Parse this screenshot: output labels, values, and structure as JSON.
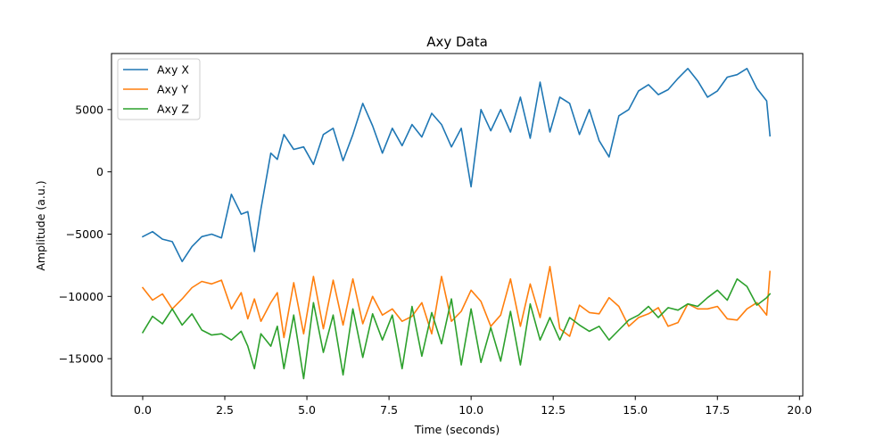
{
  "chart_data": {
    "type": "line",
    "title": "Axy Data",
    "xlabel": "Time (seconds)",
    "ylabel": "Amplitude (a.u.)",
    "xlim": [
      -0.95,
      20.1
    ],
    "ylim": [
      -18000,
      9500
    ],
    "xticks": [
      0,
      2.5,
      5,
      7.5,
      10,
      12.5,
      15,
      17.5,
      20
    ],
    "xtick_labels": [
      "0.0",
      "2.5",
      "5.0",
      "7.5",
      "10.0",
      "12.5",
      "15.0",
      "17.5",
      "20.0"
    ],
    "yticks": [
      -15000,
      -10000,
      -5000,
      0,
      5000
    ],
    "ytick_labels": [
      "−15000",
      "−10000",
      "−5000",
      "0",
      "5000"
    ],
    "grid": false,
    "legend_position": "upper-left",
    "series": [
      {
        "name": "Axy X",
        "color": "#1f77b4",
        "x": [
          0,
          0.3,
          0.6,
          0.9,
          1.2,
          1.5,
          1.8,
          2.1,
          2.4,
          2.7,
          3.0,
          3.2,
          3.4,
          3.6,
          3.9,
          4.1,
          4.3,
          4.6,
          4.9,
          5.2,
          5.5,
          5.8,
          6.1,
          6.4,
          6.7,
          7.0,
          7.3,
          7.6,
          7.9,
          8.2,
          8.5,
          8.8,
          9.1,
          9.4,
          9.7,
          10.0,
          10.3,
          10.6,
          10.9,
          11.2,
          11.5,
          11.8,
          12.1,
          12.4,
          12.7,
          13.0,
          13.3,
          13.6,
          13.9,
          14.2,
          14.5,
          14.8,
          15.1,
          15.4,
          15.7,
          16.0,
          16.3,
          16.6,
          16.9,
          17.2,
          17.5,
          17.8,
          18.1,
          18.4,
          18.7,
          19.0,
          19.1
        ],
        "y": [
          -5200,
          -4800,
          -5400,
          -5600,
          -7200,
          -6000,
          -5200,
          -5000,
          -5300,
          -1800,
          -3400,
          -3200,
          -6400,
          -3000,
          1500,
          1000,
          3000,
          1800,
          2000,
          600,
          3000,
          3500,
          900,
          3000,
          5500,
          3700,
          1500,
          3500,
          2100,
          3800,
          2800,
          4700,
          3800,
          2000,
          3500,
          -1200,
          5000,
          3300,
          5000,
          3200,
          6000,
          2700,
          7200,
          3200,
          6000,
          5500,
          3000,
          5000,
          2500,
          1200,
          4500,
          5000,
          6500,
          7000,
          6200,
          6600,
          7500,
          8300,
          7300,
          6000,
          6500,
          7600,
          7800,
          8300,
          6700,
          5700,
          2900
        ]
      },
      {
        "name": "Axy Y",
        "color": "#ff7f0e",
        "x": [
          0,
          0.3,
          0.6,
          0.9,
          1.2,
          1.5,
          1.8,
          2.1,
          2.4,
          2.7,
          3.0,
          3.2,
          3.4,
          3.6,
          3.9,
          4.1,
          4.3,
          4.6,
          4.9,
          5.2,
          5.5,
          5.8,
          6.1,
          6.4,
          6.7,
          7.0,
          7.3,
          7.6,
          7.9,
          8.2,
          8.5,
          8.8,
          9.1,
          9.4,
          9.7,
          10.0,
          10.3,
          10.6,
          10.9,
          11.2,
          11.5,
          11.8,
          12.1,
          12.4,
          12.7,
          13.0,
          13.3,
          13.6,
          13.9,
          14.2,
          14.5,
          14.8,
          15.1,
          15.4,
          15.7,
          16.0,
          16.3,
          16.6,
          16.9,
          17.2,
          17.5,
          17.8,
          18.1,
          18.4,
          18.7,
          19.0,
          19.1
        ],
        "y": [
          -9300,
          -10300,
          -9800,
          -11000,
          -10200,
          -9300,
          -8800,
          -9000,
          -8700,
          -11000,
          -9700,
          -11800,
          -10200,
          -12000,
          -10500,
          -9700,
          -13300,
          -8900,
          -13000,
          -8400,
          -12600,
          -8700,
          -12300,
          -8600,
          -12200,
          -10000,
          -11500,
          -11000,
          -12000,
          -11600,
          -10500,
          -13000,
          -8400,
          -12000,
          -11200,
          -9500,
          -10400,
          -12400,
          -11500,
          -8600,
          -12400,
          -9000,
          -11700,
          -7600,
          -12600,
          -13200,
          -10700,
          -11300,
          -11400,
          -10100,
          -10800,
          -12400,
          -11700,
          -11400,
          -10900,
          -12400,
          -12100,
          -10600,
          -11000,
          -11000,
          -10800,
          -11800,
          -11900,
          -11000,
          -10500,
          -11500,
          -8000
        ]
      },
      {
        "name": "Axy Z",
        "color": "#2ca02c",
        "x": [
          0,
          0.3,
          0.6,
          0.9,
          1.2,
          1.5,
          1.8,
          2.1,
          2.4,
          2.7,
          3.0,
          3.2,
          3.4,
          3.6,
          3.9,
          4.1,
          4.3,
          4.6,
          4.9,
          5.2,
          5.5,
          5.8,
          6.1,
          6.4,
          6.7,
          7.0,
          7.3,
          7.6,
          7.9,
          8.2,
          8.5,
          8.8,
          9.1,
          9.4,
          9.7,
          10.0,
          10.3,
          10.6,
          10.9,
          11.2,
          11.5,
          11.8,
          12.1,
          12.4,
          12.7,
          13.0,
          13.3,
          13.6,
          13.9,
          14.2,
          14.5,
          14.8,
          15.1,
          15.4,
          15.7,
          16.0,
          16.3,
          16.6,
          16.9,
          17.2,
          17.5,
          17.8,
          18.1,
          18.4,
          18.7,
          19.0,
          19.1
        ],
        "y": [
          -12900,
          -11600,
          -12200,
          -11000,
          -12300,
          -11400,
          -12700,
          -13100,
          -13000,
          -13500,
          -12800,
          -14000,
          -15800,
          -13000,
          -14000,
          -12400,
          -15800,
          -11500,
          -16600,
          -10500,
          -14500,
          -11500,
          -16300,
          -11000,
          -14900,
          -11400,
          -13500,
          -11500,
          -15800,
          -10800,
          -14800,
          -11300,
          -13800,
          -10200,
          -15500,
          -11000,
          -15300,
          -12500,
          -15200,
          -11200,
          -15500,
          -10600,
          -13500,
          -11700,
          -13500,
          -11700,
          -12300,
          -12800,
          -12400,
          -13500,
          -12700,
          -11900,
          -11500,
          -10800,
          -11700,
          -10900,
          -11100,
          -10600,
          -10800,
          -10100,
          -9500,
          -10300,
          -8600,
          -9200,
          -10700,
          -10100,
          -9800
        ]
      }
    ]
  }
}
